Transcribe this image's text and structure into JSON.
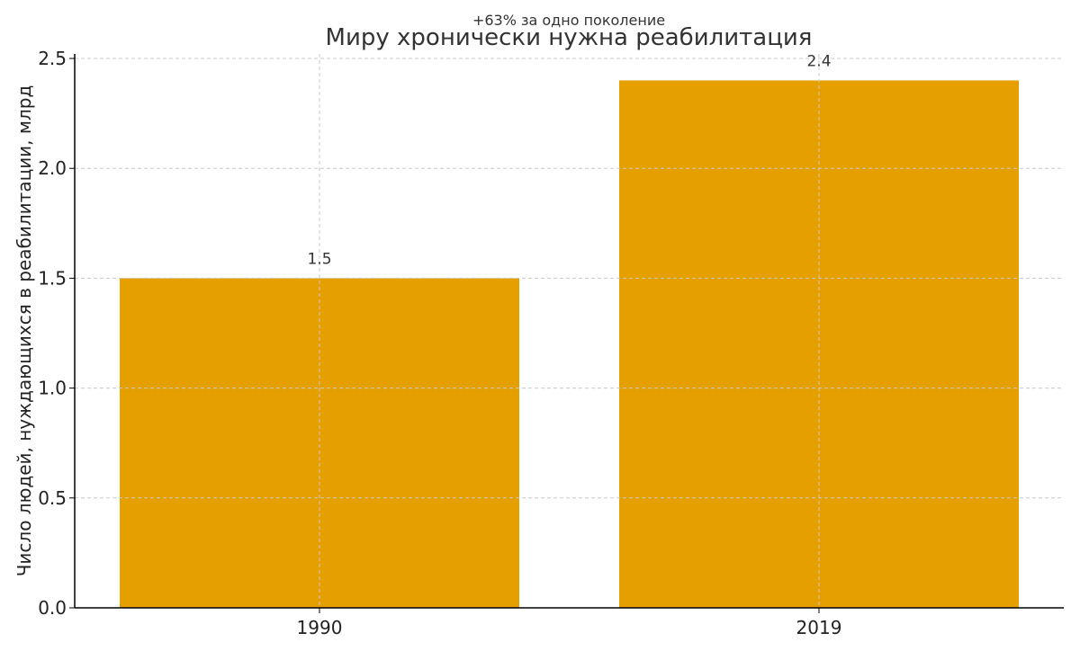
{
  "chart_data": {
    "type": "bar",
    "title": "Миру хронически нужна реабилитация",
    "subtitle": "+63% за одно поколение",
    "xlabel": "",
    "ylabel": "Число людей, нуждающихся в реабилитации, млрд",
    "categories": [
      "1990",
      "2019"
    ],
    "values": [
      1.5,
      2.4
    ],
    "data_labels": [
      "1.5",
      "2.4"
    ],
    "ylim": [
      0,
      2.5
    ],
    "yticks": [
      "0.0",
      "0.5",
      "1.0",
      "1.5",
      "2.0",
      "2.5"
    ],
    "grid": true,
    "bar_color": "#E5A000"
  }
}
